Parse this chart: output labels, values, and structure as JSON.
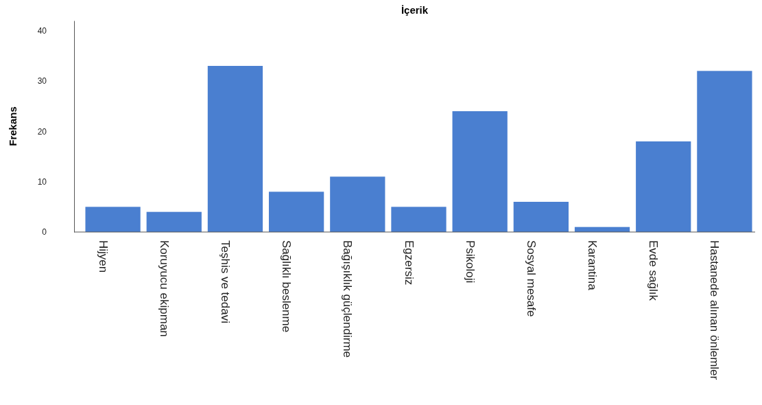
{
  "chart_data": {
    "type": "bar",
    "title": "İçerik",
    "ylabel": "Frekans",
    "categories": [
      "Hijyen",
      "Koruyucu ekipman",
      "Teşhis ve tedavi",
      "Sağlıklı beslenme",
      "Bağışıklık güçlendirme",
      "Egzersiz",
      "Psikoloji",
      "Sosyal mesafe",
      "Karantina",
      "Evde sağlık",
      "Hastanede alınan önlemler"
    ],
    "values": [
      5,
      4,
      33,
      8,
      11,
      5,
      24,
      6,
      1,
      18,
      32
    ],
    "color": "#4a7fd0",
    "ylim": [
      0,
      42
    ],
    "yticks": [
      0,
      10,
      20,
      30,
      40
    ]
  }
}
